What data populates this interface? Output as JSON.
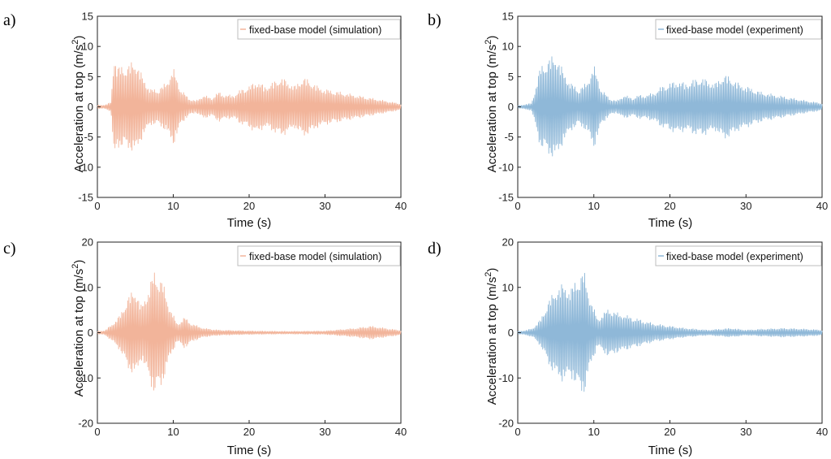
{
  "chart_data": [
    {
      "panel": "a)",
      "type": "line",
      "xlabel": "Time (s)",
      "ylabel": "Acceleration at top (m/s²)",
      "xlim": [
        0,
        40
      ],
      "ylim": [
        -15,
        15
      ],
      "xticks": [
        0,
        10,
        20,
        30,
        40
      ],
      "yticks": [
        15,
        10,
        5,
        0,
        -5,
        -10,
        -15
      ],
      "legend_position": "top-right",
      "series": [
        {
          "name": "fixed-base model (simulation)",
          "color": "#f2b49a",
          "envelope": [
            [
              0,
              0.3
            ],
            [
              1,
              0.3
            ],
            [
              1.8,
              0.8
            ],
            [
              2.2,
              9.5
            ],
            [
              2.6,
              6.5
            ],
            [
              3,
              7
            ],
            [
              4,
              7
            ],
            [
              5,
              8
            ],
            [
              6,
              5
            ],
            [
              7,
              3
            ],
            [
              8,
              3
            ],
            [
              9,
              4
            ],
            [
              10,
              6.5
            ],
            [
              11,
              3
            ],
            [
              12,
              1.5
            ],
            [
              13,
              1
            ],
            [
              14,
              2
            ],
            [
              15,
              1.5
            ],
            [
              16,
              2.5
            ],
            [
              17,
              2
            ],
            [
              18,
              2
            ],
            [
              19,
              3
            ],
            [
              20,
              3.5
            ],
            [
              21,
              4.5
            ],
            [
              22,
              3.5
            ],
            [
              23,
              4
            ],
            [
              24,
              5
            ],
            [
              25,
              4.5
            ],
            [
              26,
              3.5
            ],
            [
              27,
              5
            ],
            [
              28,
              4.5
            ],
            [
              29,
              3.5
            ],
            [
              30,
              3
            ],
            [
              32,
              2.5
            ],
            [
              34,
              2
            ],
            [
              36,
              1.5
            ],
            [
              38,
              1
            ],
            [
              40,
              0.5
            ]
          ]
        }
      ]
    },
    {
      "panel": "b)",
      "type": "line",
      "xlabel": "Time (s)",
      "ylabel": "Acceleration at top (m/s²)",
      "xlim": [
        0,
        40
      ],
      "ylim": [
        -15,
        15
      ],
      "xticks": [
        0,
        10,
        20,
        30,
        40
      ],
      "yticks": [
        15,
        10,
        5,
        0,
        -5,
        -10,
        -15
      ],
      "legend_position": "top-right",
      "series": [
        {
          "name": "fixed-base model (experiment)",
          "color": "#8fb8d8",
          "envelope": [
            [
              0,
              0.2
            ],
            [
              1,
              0.4
            ],
            [
              1.8,
              0.6
            ],
            [
              2.3,
              3
            ],
            [
              3,
              7
            ],
            [
              4,
              8
            ],
            [
              5,
              9
            ],
            [
              6,
              6
            ],
            [
              7,
              4
            ],
            [
              8,
              3
            ],
            [
              9,
              4
            ],
            [
              10,
              7
            ],
            [
              11,
              3
            ],
            [
              12,
              1.5
            ],
            [
              13,
              1
            ],
            [
              14,
              2
            ],
            [
              15,
              1.5
            ],
            [
              16,
              2
            ],
            [
              17,
              2
            ],
            [
              18,
              2.5
            ],
            [
              19,
              3.5
            ],
            [
              20,
              4
            ],
            [
              21,
              4.5
            ],
            [
              22,
              4
            ],
            [
              23,
              4.5
            ],
            [
              24,
              5
            ],
            [
              25,
              4.5
            ],
            [
              26,
              4
            ],
            [
              27,
              5.5
            ],
            [
              28,
              5
            ],
            [
              29,
              4
            ],
            [
              30,
              3.5
            ],
            [
              32,
              2.5
            ],
            [
              34,
              2
            ],
            [
              36,
              1.5
            ],
            [
              38,
              1
            ],
            [
              40,
              0.6
            ]
          ]
        }
      ]
    },
    {
      "panel": "c)",
      "type": "line",
      "xlabel": "Time (s)",
      "ylabel": "Acceleration at top (m/s²)",
      "xlim": [
        0,
        40
      ],
      "ylim": [
        -20,
        20
      ],
      "xticks": [
        0,
        10,
        20,
        30,
        40
      ],
      "yticks": [
        20,
        10,
        0,
        -10,
        -20
      ],
      "legend_position": "top-right",
      "series": [
        {
          "name": "fixed-base model (simulation)",
          "color": "#f2b49a",
          "envelope": [
            [
              0,
              0.3
            ],
            [
              1,
              0.5
            ],
            [
              2,
              2
            ],
            [
              3,
              4
            ],
            [
              4,
              8
            ],
            [
              5,
              10
            ],
            [
              5.8,
              6
            ],
            [
              6.5,
              9
            ],
            [
              7.5,
              14
            ],
            [
              8.5,
              12
            ],
            [
              9.5,
              6
            ],
            [
              10.5,
              2
            ],
            [
              11.5,
              3.5
            ],
            [
              12.5,
              2
            ],
            [
              14,
              1
            ],
            [
              16,
              0.6
            ],
            [
              20,
              0.4
            ],
            [
              25,
              0.3
            ],
            [
              30,
              0.4
            ],
            [
              34,
              1
            ],
            [
              36,
              1.5
            ],
            [
              38,
              1
            ],
            [
              40,
              0.5
            ]
          ]
        }
      ]
    },
    {
      "panel": "d)",
      "type": "line",
      "xlabel": "Time (s)",
      "ylabel": "Acceleration at top (m/s²)",
      "xlim": [
        0,
        40
      ],
      "ylim": [
        -20,
        20
      ],
      "xticks": [
        0,
        10,
        20,
        30,
        40
      ],
      "yticks": [
        20,
        10,
        0,
        -10,
        -20
      ],
      "legend_position": "top-right",
      "series": [
        {
          "name": "fixed-base model (experiment)",
          "color": "#8fb8d8",
          "envelope": [
            [
              0,
              0.3
            ],
            [
              1,
              0.5
            ],
            [
              2,
              1
            ],
            [
              3,
              3
            ],
            [
              4,
              7
            ],
            [
              5,
              10
            ],
            [
              6,
              11
            ],
            [
              7,
              10
            ],
            [
              8,
              13
            ],
            [
              8.7,
              14
            ],
            [
              9.5,
              8
            ],
            [
              10.5,
              3
            ],
            [
              11,
              4
            ],
            [
              12,
              5.5
            ],
            [
              13,
              4.5
            ],
            [
              14,
              4
            ],
            [
              16,
              3
            ],
            [
              18,
              2
            ],
            [
              20,
              1.5
            ],
            [
              22,
              1
            ],
            [
              25,
              0.6
            ],
            [
              28,
              1
            ],
            [
              30,
              0.6
            ],
            [
              32,
              0.8
            ],
            [
              35,
              1
            ],
            [
              38,
              0.8
            ],
            [
              40,
              0.6
            ]
          ]
        }
      ]
    }
  ]
}
